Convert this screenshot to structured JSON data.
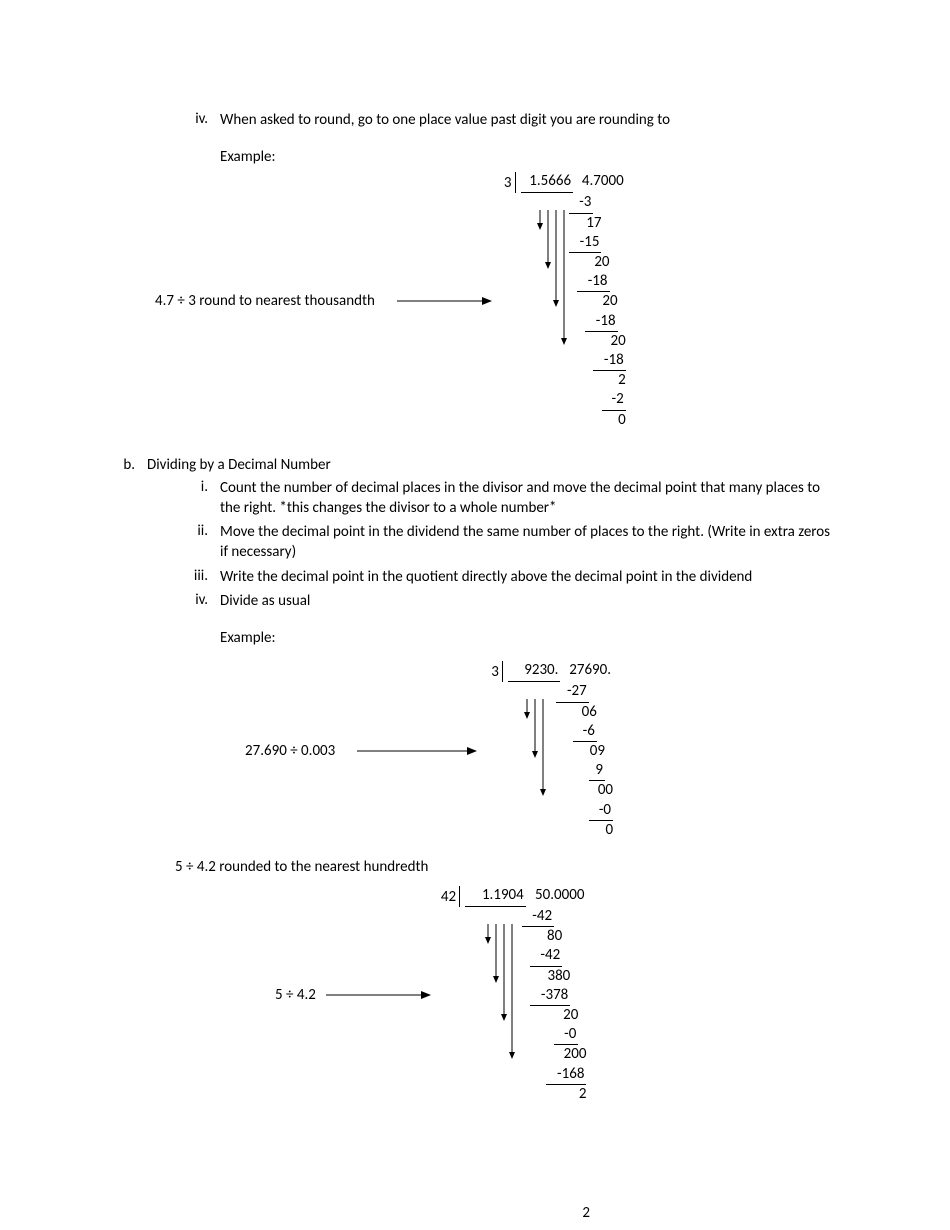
{
  "colors": {
    "text": "#000000",
    "background": "#ffffff",
    "arrow": "#000000"
  },
  "font": {
    "family": "Calibri",
    "body_size": 15,
    "math_size": 15
  },
  "item_iv": {
    "label": "iv.",
    "text": "When asked to round, go to one place value past digit you are rounding to"
  },
  "example_label": "Example:",
  "ex1": {
    "problem": "4.7 ÷ 3 round to nearest thousandth",
    "divisor": "3",
    "dividend": "4.7000",
    "quotient": "1.5666",
    "steps": [
      {
        "v": "-3",
        "ul": true,
        "pad": 4
      },
      {
        "v": "17",
        "ul": false,
        "pad": 3
      },
      {
        "v": "-15",
        "ul": true,
        "pad": 3
      },
      {
        "v": "20",
        "ul": false,
        "pad": 2
      },
      {
        "v": "-18",
        "ul": true,
        "pad": 2
      },
      {
        "v": "20",
        "ul": false,
        "pad": 1
      },
      {
        "v": "-18",
        "ul": true,
        "pad": 1
      },
      {
        "v": "20",
        "ul": false,
        "pad": 0
      },
      {
        "v": "-18",
        "ul": true,
        "pad": 0
      },
      {
        "v": "2",
        "ul": false,
        "pad": 0
      },
      {
        "v": "-2",
        "ul": true,
        "pad": 0
      },
      {
        "v": "0",
        "ul": false,
        "pad": 0
      }
    ]
  },
  "section_b": {
    "label": "b.",
    "title": "Dividing by a Decimal Number",
    "items": [
      {
        "label": "i.",
        "text": "Count the number of decimal places in the divisor and move the decimal point that many places to the right. *this changes the divisor to a whole number*"
      },
      {
        "label": "ii.",
        "text": "Move the decimal point in the dividend the same number of places to the right. (Write in extra zeros if necessary)"
      },
      {
        "label": "iii.",
        "text": "Write the decimal point in the quotient directly above the decimal point in the dividend"
      },
      {
        "label": "iv.",
        "text": "Divide as usual"
      }
    ]
  },
  "ex2": {
    "problem": "27.690  ÷ 0.003",
    "divisor": "3",
    "dividend": "27690.",
    "quotient": "9230.",
    "steps": [
      {
        "v": "-27",
        "ul": true,
        "pad": 3
      },
      {
        "v": "06",
        "ul": false,
        "pad": 2
      },
      {
        "v": "-6",
        "ul": true,
        "pad": 2
      },
      {
        "v": "09",
        "ul": false,
        "pad": 1
      },
      {
        "v": "9",
        "ul": true,
        "pad": 1
      },
      {
        "v": "00",
        "ul": false,
        "pad": 0
      },
      {
        "v": "-0",
        "ul": true,
        "pad": 0
      },
      {
        "v": "0",
        "ul": false,
        "pad": 0
      }
    ]
  },
  "ex3_intro": "5 ÷ 4.2 rounded to the nearest hundredth",
  "ex3": {
    "problem": "5 ÷ 4.2",
    "divisor": "42",
    "dividend": "50.0000",
    "quotient": "1.1904",
    "steps": [
      {
        "v": "-42",
        "ul": true,
        "pad": 4
      },
      {
        "v": "80",
        "ul": false,
        "pad": 3
      },
      {
        "v": "-42",
        "ul": true,
        "pad": 3
      },
      {
        "v": "380",
        "ul": false,
        "pad": 2
      },
      {
        "v": "-378",
        "ul": true,
        "pad": 2
      },
      {
        "v": "20",
        "ul": false,
        "pad": 1
      },
      {
        "v": "-0",
        "ul": true,
        "pad": 1
      },
      {
        "v": "200",
        "ul": false,
        "pad": 0
      },
      {
        "v": "-168",
        "ul": true,
        "pad": 0
      },
      {
        "v": "2",
        "ul": false,
        "pad": 0
      }
    ]
  },
  "page_number": "2",
  "arrows": {
    "horiz": {
      "length": 95,
      "stroke": "#000000",
      "width": 1
    },
    "drop": {
      "stroke": "#000000",
      "width": 1
    }
  }
}
